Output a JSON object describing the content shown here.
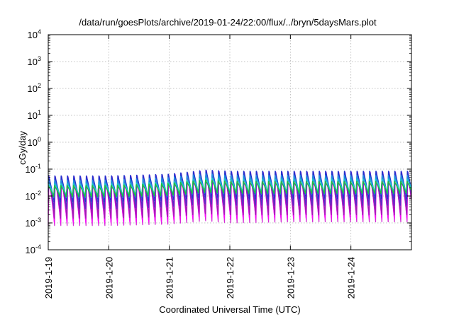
{
  "chart_data": {
    "type": "line",
    "title": "/data/run/goesPlots/archive/2019-01-24/22:00/flux/../bryn/5daysMars.plot",
    "xlabel": "Coordinated Universal Time (UTC)",
    "ylabel": "cGy/day",
    "y_scale": "log",
    "ylim": [
      0.0001,
      10000
    ],
    "xlim": [
      "2019-01-19",
      "2019-01-25"
    ],
    "grid": true,
    "y_ticks": [
      {
        "base": "10",
        "exp": "-4"
      },
      {
        "base": "10",
        "exp": "-3"
      },
      {
        "base": "10",
        "exp": "-2"
      },
      {
        "base": "10",
        "exp": "-1"
      },
      {
        "base": "10",
        "exp": "0"
      },
      {
        "base": "10",
        "exp": "1"
      },
      {
        "base": "10",
        "exp": "2"
      },
      {
        "base": "10",
        "exp": "3"
      },
      {
        "base": "10",
        "exp": "4"
      }
    ],
    "x_ticks": [
      "2019-1-19",
      "2019-1-20",
      "2019-1-21",
      "2019-1-22",
      "2019-1-23",
      "2019-1-24"
    ],
    "oscillation_period_days": 0.104,
    "x": [
      "2019-01-19",
      "2019-01-20",
      "2019-01-21",
      "2019-01-21.6",
      "2019-01-22",
      "2019-01-23",
      "2019-01-24",
      "2019-01-25"
    ],
    "series": [
      {
        "color": "#d62ad6",
        "peak": [
          0.06,
          0.06,
          0.07,
          0.1,
          0.09,
          0.09,
          0.09,
          0.09
        ],
        "trough": [
          0.0008,
          0.0008,
          0.0009,
          0.0012,
          0.001,
          0.0011,
          0.0011,
          0.0011
        ]
      },
      {
        "color": "#ff00ff",
        "peak": [
          0.05,
          0.05,
          0.06,
          0.09,
          0.08,
          0.08,
          0.08,
          0.08
        ],
        "trough": [
          0.0009,
          0.0009,
          0.001,
          0.0014,
          0.0012,
          0.0013,
          0.0013,
          0.0013
        ]
      },
      {
        "color": "#9c1fb0",
        "peak": [
          0.05,
          0.05,
          0.06,
          0.08,
          0.07,
          0.07,
          0.07,
          0.07
        ],
        "trough": [
          0.0015,
          0.0015,
          0.0017,
          0.0022,
          0.002,
          0.002,
          0.002,
          0.002
        ]
      },
      {
        "color": "#5a2bc9",
        "peak": [
          0.055,
          0.055,
          0.065,
          0.09,
          0.08,
          0.08,
          0.08,
          0.08
        ],
        "trough": [
          0.003,
          0.003,
          0.0035,
          0.0045,
          0.004,
          0.004,
          0.004,
          0.004
        ]
      },
      {
        "color": "#2233cc",
        "peak": [
          0.06,
          0.06,
          0.07,
          0.1,
          0.09,
          0.09,
          0.09,
          0.09
        ],
        "trough": [
          0.006,
          0.006,
          0.007,
          0.009,
          0.008,
          0.008,
          0.008,
          0.008
        ]
      },
      {
        "color": "#1f8fe0",
        "peak": [
          0.04,
          0.04,
          0.05,
          0.07,
          0.06,
          0.06,
          0.06,
          0.06
        ],
        "trough": [
          0.008,
          0.008,
          0.009,
          0.012,
          0.011,
          0.011,
          0.011,
          0.011
        ]
      },
      {
        "color": "#17c9c9",
        "peak": [
          0.03,
          0.03,
          0.035,
          0.05,
          0.045,
          0.045,
          0.045,
          0.045
        ],
        "trough": [
          0.01,
          0.01,
          0.011,
          0.015,
          0.013,
          0.013,
          0.013,
          0.013
        ]
      },
      {
        "color": "#1fbf3a",
        "peak": [
          0.025,
          0.025,
          0.03,
          0.04,
          0.035,
          0.035,
          0.035,
          0.035
        ],
        "trough": [
          0.009,
          0.009,
          0.01,
          0.013,
          0.012,
          0.012,
          0.012,
          0.012
        ]
      }
    ]
  }
}
